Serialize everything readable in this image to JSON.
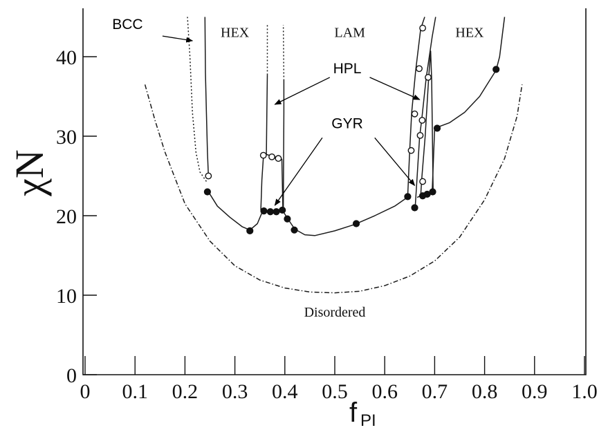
{
  "chart_data": {
    "type": "line",
    "xlabel": "f",
    "xlabel_subscript": "PI",
    "ylabel": "χN",
    "xlim": [
      0,
      1.0
    ],
    "ylim": [
      0,
      45
    ],
    "x_ticks": [
      0,
      0.1,
      0.2,
      0.3,
      0.4,
      0.5,
      0.6,
      0.7,
      0.8,
      0.9,
      1.0
    ],
    "x_tick_labels": [
      "0",
      "0.1",
      "0.2",
      "0.3",
      "0.4",
      "0.5",
      "0.6",
      "0.7",
      "0.8",
      "0.9",
      "1.0"
    ],
    "y_ticks": [
      0,
      10,
      20,
      30,
      40
    ],
    "y_tick_labels": [
      "0",
      "10",
      "20",
      "30",
      "40"
    ],
    "grid": false,
    "region_labels": [
      {
        "text": "HEX",
        "x": 0.3,
        "y": 42.5
      },
      {
        "text": "LAM",
        "x": 0.53,
        "y": 42.5
      },
      {
        "text": "HEX",
        "x": 0.77,
        "y": 42.5
      },
      {
        "text": "Disordered",
        "x": 0.5,
        "y": 7.3
      }
    ],
    "annotations": [
      {
        "text": "BCC",
        "x": 0.085,
        "y": 43.5,
        "arrows": [
          {
            "from": [
              0.155,
              42.6
            ],
            "to": [
              0.215,
              42.0
            ]
          }
        ]
      },
      {
        "text": "HPL",
        "x": 0.525,
        "y": 37.9,
        "arrows": [
          {
            "from": [
              0.49,
              37.4
            ],
            "to": [
              0.38,
              34.0
            ]
          },
          {
            "from": [
              0.57,
              37.4
            ],
            "to": [
              0.67,
              34.6
            ]
          }
        ]
      },
      {
        "text": "GYR",
        "x": 0.525,
        "y": 31.0,
        "arrows": [
          {
            "from": [
              0.475,
              29.8
            ],
            "to": [
              0.38,
              21.3
            ]
          },
          {
            "from": [
              0.58,
              29.8
            ],
            "to": [
              0.66,
              23.8
            ]
          }
        ]
      }
    ],
    "series": [
      {
        "style": "solid",
        "values": [
          [
            0.245,
            23.2
          ],
          [
            0.265,
            21.2
          ],
          [
            0.29,
            19.8
          ],
          [
            0.315,
            18.6
          ],
          [
            0.33,
            18.2
          ],
          [
            0.345,
            19.0
          ],
          [
            0.355,
            20.5
          ],
          [
            0.36,
            20.6
          ],
          [
            0.37,
            20.5
          ],
          [
            0.38,
            20.5
          ],
          [
            0.39,
            20.6
          ],
          [
            0.395,
            20.7
          ],
          [
            0.405,
            19.7
          ],
          [
            0.42,
            18.3
          ],
          [
            0.44,
            17.6
          ],
          [
            0.46,
            17.5
          ],
          [
            0.5,
            18.1
          ],
          [
            0.54,
            18.9
          ],
          [
            0.58,
            20.0
          ],
          [
            0.62,
            21.2
          ],
          [
            0.645,
            22.3
          ]
        ]
      },
      {
        "style": "solid",
        "values": [
          [
            0.665,
            22.3
          ],
          [
            0.675,
            22.6
          ],
          [
            0.685,
            22.8
          ],
          [
            0.695,
            23.0
          ],
          [
            0.7,
            31.0
          ],
          [
            0.73,
            31.7
          ],
          [
            0.76,
            33.0
          ],
          [
            0.79,
            35.0
          ],
          [
            0.81,
            37.0
          ],
          [
            0.823,
            38.3
          ],
          [
            0.83,
            40.0
          ],
          [
            0.836,
            43.0
          ],
          [
            0.84,
            45.0
          ]
        ]
      },
      {
        "style": "solid",
        "values": [
          [
            0.247,
            25.0
          ],
          [
            0.245,
            28.0
          ],
          [
            0.243,
            33.0
          ],
          [
            0.241,
            38.0
          ],
          [
            0.24,
            45.0
          ]
        ]
      },
      {
        "style": "dotted",
        "values": [
          [
            0.243,
            24.3
          ],
          [
            0.23,
            25.5
          ],
          [
            0.222,
            28.0
          ],
          [
            0.215,
            33.0
          ],
          [
            0.21,
            40.0
          ],
          [
            0.205,
            45.0
          ]
        ]
      },
      {
        "style": "solid",
        "values": [
          [
            0.352,
            20.7
          ],
          [
            0.354,
            24.5
          ],
          [
            0.357,
            27.4
          ],
          [
            0.363,
            27.7
          ],
          [
            0.374,
            27.5
          ],
          [
            0.387,
            27.3
          ],
          [
            0.394,
            27.1
          ],
          [
            0.396,
            21.0
          ]
        ]
      },
      {
        "style": "solid",
        "values": [
          [
            0.363,
            27.7
          ],
          [
            0.364,
            33.0
          ],
          [
            0.365,
            37.7
          ]
        ]
      },
      {
        "style": "dotted",
        "values": [
          [
            0.365,
            37.7
          ],
          [
            0.365,
            44.0
          ]
        ]
      },
      {
        "style": "solid",
        "values": [
          [
            0.397,
            20.8
          ],
          [
            0.398,
            33.0
          ],
          [
            0.398,
            37.0
          ]
        ]
      },
      {
        "style": "dotted",
        "values": [
          [
            0.398,
            37.0
          ],
          [
            0.397,
            44.0
          ]
        ]
      },
      {
        "style": "solid",
        "values": [
          [
            0.646,
            22.4
          ],
          [
            0.65,
            28.2
          ],
          [
            0.654,
            33.0
          ],
          [
            0.662,
            38.3
          ],
          [
            0.672,
            43.5
          ],
          [
            0.68,
            45.0
          ]
        ]
      },
      {
        "style": "solid",
        "values": [
          [
            0.661,
            21.0
          ],
          [
            0.664,
            24.0
          ],
          [
            0.67,
            30.0
          ],
          [
            0.674,
            32.0
          ],
          [
            0.683,
            37.3
          ],
          [
            0.695,
            42.5
          ],
          [
            0.702,
            45.0
          ]
        ]
      },
      {
        "style": "solid",
        "values": [
          [
            0.672,
            22.5
          ],
          [
            0.674,
            24.5
          ],
          [
            0.681,
            30.0
          ],
          [
            0.688,
            37.3
          ],
          [
            0.692,
            40.7
          ],
          [
            0.694,
            37.0
          ],
          [
            0.697,
            23.0
          ]
        ]
      },
      {
        "style": "dashdot",
        "values": [
          [
            0.12,
            36.5
          ],
          [
            0.14,
            32.0
          ],
          [
            0.16,
            28.0
          ],
          [
            0.2,
            21.5
          ],
          [
            0.25,
            16.8
          ],
          [
            0.3,
            13.7
          ],
          [
            0.35,
            11.9
          ],
          [
            0.4,
            10.9
          ],
          [
            0.45,
            10.4
          ],
          [
            0.5,
            10.3
          ],
          [
            0.55,
            10.5
          ],
          [
            0.6,
            11.2
          ],
          [
            0.65,
            12.4
          ],
          [
            0.7,
            14.3
          ],
          [
            0.75,
            17.3
          ],
          [
            0.8,
            22.0
          ],
          [
            0.84,
            27.2
          ],
          [
            0.865,
            32.5
          ],
          [
            0.875,
            36.5
          ]
        ]
      }
    ],
    "markers": {
      "filled": [
        [
          0.245,
          23.0
        ],
        [
          0.33,
          18.1
        ],
        [
          0.358,
          20.6
        ],
        [
          0.371,
          20.5
        ],
        [
          0.383,
          20.5
        ],
        [
          0.395,
          20.7
        ],
        [
          0.405,
          19.6
        ],
        [
          0.419,
          18.2
        ],
        [
          0.543,
          19.0
        ],
        [
          0.646,
          22.4
        ],
        [
          0.66,
          21.0
        ],
        [
          0.676,
          22.5
        ],
        [
          0.685,
          22.7
        ],
        [
          0.696,
          23.0
        ],
        [
          0.705,
          31.0
        ],
        [
          0.823,
          38.4
        ]
      ],
      "open": [
        [
          0.247,
          25.0
        ],
        [
          0.357,
          27.6
        ],
        [
          0.374,
          27.4
        ],
        [
          0.387,
          27.2
        ],
        [
          0.653,
          28.2
        ],
        [
          0.66,
          32.8
        ],
        [
          0.669,
          38.5
        ],
        [
          0.676,
          43.6
        ],
        [
          0.671,
          30.1
        ],
        [
          0.675,
          32.0
        ],
        [
          0.676,
          24.3
        ],
        [
          0.687,
          37.4
        ]
      ]
    }
  }
}
